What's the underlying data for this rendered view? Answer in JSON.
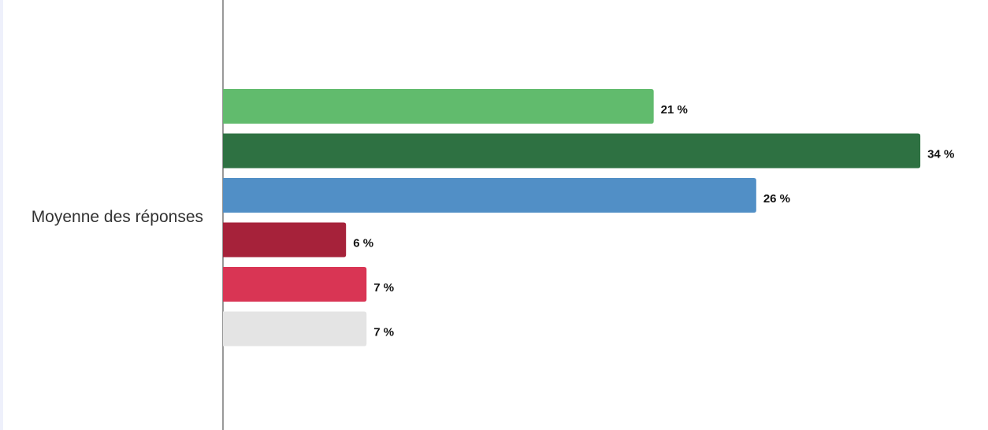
{
  "chart_data": {
    "type": "bar",
    "orientation": "horizontal",
    "categories": [
      "Moyenne des réponses"
    ],
    "xlim": [
      0,
      37.3
    ],
    "series": [
      {
        "color": "#61bb6d",
        "values": [
          21
        ],
        "value_labels": [
          "21 %"
        ]
      },
      {
        "color": "#2e7142",
        "values": [
          34
        ],
        "value_labels": [
          "34 %"
        ]
      },
      {
        "color": "#518fc6",
        "values": [
          26
        ],
        "value_labels": [
          "26 %"
        ]
      },
      {
        "color": "#a6223a",
        "values": [
          6
        ],
        "value_labels": [
          "6 %"
        ]
      },
      {
        "color": "#d93554",
        "values": [
          7
        ],
        "value_labels": [
          "7 %"
        ]
      },
      {
        "color": "#e4e4e4",
        "values": [
          7
        ],
        "value_labels": [
          "7 %"
        ]
      }
    ]
  }
}
